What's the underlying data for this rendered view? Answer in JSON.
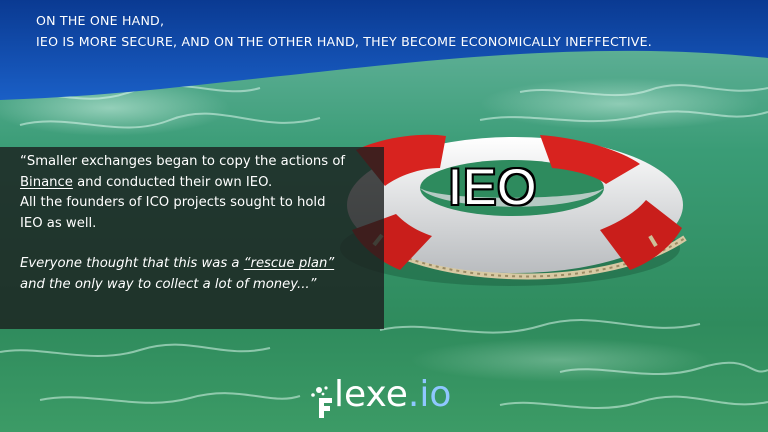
{
  "header": {
    "line1": "ON THE ONE HAND,",
    "line2": "IEO IS MORE SECURE, AND ON THE OTHER HAND, THEY BECOME ECONOMICALLY INEFFECTIVE."
  },
  "quote": {
    "l1a": "“Smaller exchanges began to copy the actions of",
    "l2_link": "Binance",
    "l2b": " and conducted their own IEO.",
    "l3": "All the founders of ICO projects sought to hold",
    "l4": "IEO as well.",
    "l5a": "Everyone thought that this was a ",
    "l5_link": "“rescue plan”",
    "l6": "and the only way to collect a lot of money...”"
  },
  "illustration": {
    "label": "IEO",
    "icon": "lifebuoy-icon"
  },
  "logo": {
    "word": "lexe",
    "tld": ".io"
  },
  "colors": {
    "sky_top": "#0b3f9a",
    "sea": "#3e9a6a",
    "buoy_red": "#d8231f",
    "buoy_white": "#f2f2f2",
    "accent_tld": "#8fc7ff"
  }
}
